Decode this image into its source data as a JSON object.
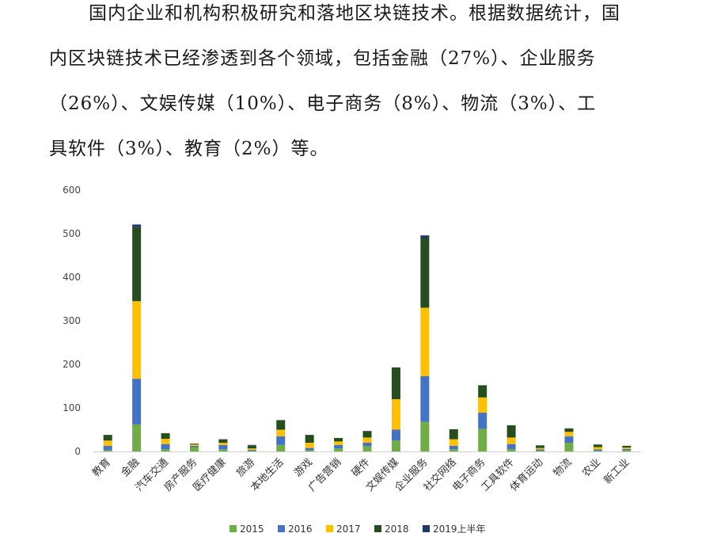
{
  "paragraph": {
    "lines": [
      "国内企业和机构积极研究和落地区块链技术。根据数据统计，国",
      "内区块链技术已经渗透到各个领域，包括金融（27%）、企业服务",
      "（26%）、文娱传媒（10%）、电子商务（8%）、物流（3%）、工",
      "具软件（3%）、教育（2%）等。"
    ]
  },
  "chart_data": {
    "type": "bar",
    "stacked": true,
    "categories": [
      "教育",
      "金融",
      "汽车交通",
      "房产服务",
      "医疗健康",
      "旅游",
      "本地生活",
      "游戏",
      "广告营销",
      "硬件",
      "文娱传媒",
      "企业服务",
      "社交网络",
      "电子商务",
      "工具软件",
      "体育运动",
      "物流",
      "农业",
      "新工业"
    ],
    "series": [
      {
        "name": "2015",
        "color": "#70ad47",
        "values": [
          3,
          62,
          5,
          10,
          5,
          2,
          15,
          3,
          7,
          12,
          25,
          68,
          5,
          52,
          5,
          2,
          20,
          2,
          3
        ]
      },
      {
        "name": "2016",
        "color": "#4472c4",
        "values": [
          10,
          105,
          12,
          3,
          10,
          2,
          20,
          5,
          8,
          8,
          25,
          105,
          8,
          37,
          12,
          3,
          15,
          3,
          3
        ]
      },
      {
        "name": "2017",
        "color": "#ffc000",
        "values": [
          12,
          178,
          12,
          3,
          5,
          3,
          15,
          12,
          8,
          12,
          70,
          157,
          15,
          35,
          15,
          3,
          10,
          5,
          3
        ]
      },
      {
        "name": "2018",
        "color": "#264d1e",
        "values": [
          13,
          170,
          13,
          2,
          8,
          7,
          22,
          18,
          8,
          15,
          73,
          160,
          23,
          28,
          28,
          6,
          8,
          6,
          4
        ]
      },
      {
        "name": "2019上半年",
        "color": "#1f3864",
        "values": [
          0,
          6,
          0,
          0,
          0,
          1,
          0,
          0,
          0,
          0,
          0,
          6,
          0,
          0,
          0,
          0,
          0,
          0,
          0
        ]
      }
    ],
    "ylim": [
      0,
      600
    ],
    "yticks": [
      0,
      100,
      200,
      300,
      400,
      500,
      600
    ],
    "grid": false,
    "legend": "bottom"
  }
}
